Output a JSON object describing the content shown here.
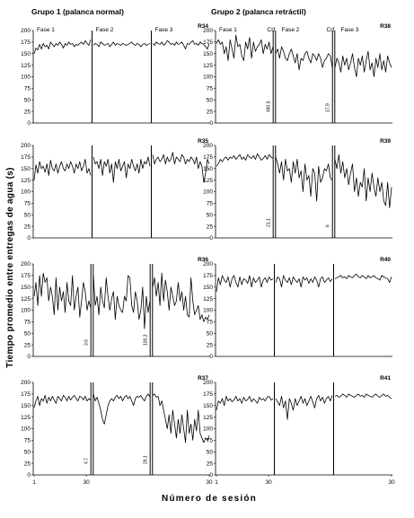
{
  "figure": {
    "group1_title": "Grupo 1 (palanca normal)",
    "group2_title": "Grupo 2 (palanca retráctil)",
    "ylabel": "Tiempo promedio entre entregas de agua (s)",
    "xlabel": "Número de sesión"
  },
  "chart_data": [
    {
      "id": "R34",
      "type": "line",
      "rat_label": "R34",
      "group": 1,
      "col": 0,
      "row": 0,
      "phase_labels": [
        "Fase 1",
        "Fase 2",
        "Fase 3"
      ],
      "boundaries": [
        [
          32
        ],
        [
          33
        ]
      ],
      "annotations": [],
      "ylim": [
        0,
        200
      ],
      "yticks": [
        0,
        25,
        50,
        75,
        100,
        125,
        150,
        175,
        200
      ],
      "phases": [
        [
          150,
          162,
          158,
          170,
          160,
          172,
          165,
          168,
          160,
          175,
          170,
          165,
          172,
          168,
          175,
          170,
          162,
          172,
          168,
          175,
          170,
          172,
          165,
          170,
          168,
          172,
          175,
          170,
          178,
          172,
          168,
          180
        ],
        [
          168,
          172,
          170,
          165,
          175,
          172,
          168,
          170,
          172,
          165,
          170,
          175,
          168,
          172,
          170,
          168,
          172,
          170,
          168,
          170,
          172,
          175,
          170,
          168,
          172,
          170,
          165,
          170,
          172,
          168,
          170,
          172
        ],
        [
          172,
          168,
          175,
          172,
          170,
          175,
          168,
          172,
          178,
          175,
          170,
          172,
          168,
          175,
          170,
          172,
          175,
          168,
          160,
          172,
          170,
          175,
          178,
          170,
          172,
          168,
          175,
          172,
          170,
          165,
          160,
          172
        ]
      ]
    },
    {
      "id": "R35",
      "type": "line",
      "rat_label": "R35",
      "group": 1,
      "col": 0,
      "row": 1,
      "phase_labels": [],
      "boundaries": [
        [
          32
        ],
        [
          33
        ]
      ],
      "annotations": [],
      "ylim": [
        0,
        200
      ],
      "yticks": [
        0,
        25,
        50,
        75,
        100,
        125,
        150,
        175,
        200
      ],
      "phases": [
        [
          125,
          158,
          140,
          165,
          150,
          155,
          142,
          160,
          135,
          168,
          150,
          145,
          160,
          140,
          155,
          165,
          150,
          145,
          160,
          150,
          165,
          155,
          140,
          160,
          150,
          165,
          145,
          155,
          170,
          140,
          150,
          135
        ],
        [
          175,
          160,
          165,
          150,
          170,
          135,
          165,
          155,
          170,
          140,
          160,
          120,
          165,
          150,
          170,
          145,
          155,
          165,
          130,
          160,
          150,
          170,
          155,
          145,
          160,
          140,
          170,
          150,
          165,
          160,
          175,
          155
        ],
        [
          180,
          160,
          170,
          175,
          165,
          170,
          180,
          160,
          175,
          165,
          170,
          185,
          160,
          175,
          170,
          165,
          180,
          175,
          160,
          170,
          165,
          175,
          170,
          160,
          175,
          150,
          165,
          155,
          120,
          140,
          170,
          160
        ]
      ]
    },
    {
      "id": "R36",
      "type": "line",
      "rat_label": "R36",
      "group": 1,
      "col": 0,
      "row": 2,
      "phase_labels": [],
      "boundaries": [
        [
          31,
          32
        ],
        [
          32,
          33
        ]
      ],
      "annotations": [
        {
          "text": "3,6",
          "phase": 0
        },
        {
          "text": "100,3",
          "phase": 1
        }
      ],
      "ylim": [
        0,
        200
      ],
      "yticks": [
        0,
        25,
        50,
        75,
        100,
        125,
        150,
        175,
        200
      ],
      "phases": [
        [
          130,
          160,
          110,
          175,
          130,
          180,
          160,
          170,
          120,
          150,
          130,
          90,
          170,
          100,
          150,
          120,
          140,
          95,
          160,
          120,
          110,
          175,
          100,
          130,
          150,
          85,
          120,
          160,
          140,
          100,
          120,
          105
        ],
        [
          175,
          110,
          130,
          90,
          150,
          120,
          105,
          170,
          130,
          100,
          125,
          140,
          80,
          130,
          110,
          100,
          95,
          130,
          120,
          175,
          170,
          110,
          95,
          140,
          120,
          80,
          100,
          150,
          60,
          130,
          95,
          120
        ],
        [
          150,
          170,
          130,
          160,
          110,
          180,
          120,
          165,
          140,
          100,
          150,
          130,
          110,
          120,
          160,
          120,
          140,
          100,
          130,
          90,
          85,
          170,
          120,
          90,
          100,
          110,
          80,
          90,
          75,
          85,
          80,
          90
        ]
      ]
    },
    {
      "id": "R37",
      "type": "line",
      "rat_label": "R37",
      "group": 1,
      "col": 0,
      "row": 3,
      "phase_labels": [],
      "boundaries": [
        [
          31,
          32
        ],
        [
          32,
          33
        ]
      ],
      "annotations": [
        {
          "text": "4,7",
          "phase": 0
        },
        {
          "text": "29,1",
          "phase": 1
        }
      ],
      "ylim": [
        0,
        200
      ],
      "yticks": [
        0,
        25,
        50,
        75,
        100,
        125,
        150,
        175,
        200
      ],
      "phases": [
        [
          145,
          160,
          170,
          150,
          165,
          160,
          172,
          155,
          168,
          160,
          170,
          162,
          155,
          170,
          165,
          160,
          172,
          168,
          160,
          170,
          162,
          168,
          172,
          165,
          160,
          170,
          168,
          162,
          170,
          160,
          165,
          162
        ],
        [
          175,
          160,
          168,
          155,
          140,
          120,
          110,
          130,
          150,
          160,
          165,
          160,
          168,
          172,
          165,
          170,
          160,
          168,
          172,
          165,
          170,
          160,
          150,
          165,
          170,
          168,
          172,
          165,
          160,
          170,
          175,
          168
        ],
        [
          172,
          175,
          168,
          170,
          150,
          160,
          140,
          120,
          100,
          130,
          90,
          140,
          110,
          80,
          120,
          90,
          130,
          100,
          70,
          140,
          90,
          110,
          75,
          120,
          95,
          140,
          90,
          80,
          70,
          80,
          75,
          85
        ]
      ]
    },
    {
      "id": "R38",
      "type": "line",
      "rat_label": "R38",
      "group": 2,
      "col": 1,
      "row": 0,
      "phase_labels": [
        "Fase 1",
        "Crf",
        "Fase 2",
        "Crf",
        "Fase 3"
      ],
      "boundaries": [
        [
          29,
          30
        ],
        [
          30,
          31
        ]
      ],
      "annotations": [
        {
          "text": "490,5",
          "phase": 0
        },
        {
          "text": "17,9",
          "phase": 1
        }
      ],
      "ylim": [
        0,
        200
      ],
      "yticks": [
        0,
        25,
        50,
        75,
        100,
        125,
        150,
        175,
        200
      ],
      "phases": [
        [
          172,
          180,
          170,
          175,
          150,
          165,
          135,
          180,
          160,
          140,
          190,
          165,
          170,
          145,
          135,
          175,
          160,
          185,
          140,
          175,
          155,
          165,
          170,
          180,
          150,
          170,
          160,
          175,
          150,
          165
        ],
        [
          150,
          160,
          140,
          165,
          155,
          140,
          135,
          150,
          160,
          145,
          130,
          150,
          115,
          140,
          135,
          150,
          155,
          140,
          130,
          150,
          145,
          135,
          150,
          140,
          120,
          135,
          140,
          150,
          145,
          120
        ],
        [
          120,
          140,
          130,
          110,
          145,
          125,
          140,
          115,
          130,
          150,
          120,
          100,
          140,
          125,
          145,
          110,
          135,
          155,
          115,
          130,
          100,
          140,
          120,
          150,
          115,
          135,
          110,
          145,
          130,
          120
        ]
      ]
    },
    {
      "id": "R39",
      "type": "line",
      "rat_label": "R39",
      "group": 2,
      "col": 1,
      "row": 1,
      "phase_labels": [],
      "boundaries": [
        [
          29,
          30
        ],
        [
          30,
          31
        ]
      ],
      "annotations": [
        {
          "text": "21,1",
          "phase": 0
        },
        {
          "text": "6",
          "phase": 1
        }
      ],
      "ylim": [
        0,
        200
      ],
      "yticks": [
        0,
        25,
        50,
        75,
        100,
        125,
        150,
        175,
        200
      ],
      "phases": [
        [
          155,
          160,
          170,
          165,
          172,
          175,
          168,
          175,
          172,
          178,
          170,
          175,
          180,
          170,
          175,
          168,
          180,
          175,
          172,
          178,
          170,
          182,
          175,
          168,
          172,
          178,
          170,
          180,
          175,
          172
        ],
        [
          175,
          160,
          140,
          165,
          125,
          170,
          145,
          150,
          120,
          165,
          140,
          170,
          130,
          145,
          100,
          160,
          125,
          135,
          90,
          150,
          140,
          80,
          155,
          120,
          130,
          150,
          145,
          160,
          130,
          125
        ],
        [
          170,
          150,
          180,
          140,
          165,
          130,
          150,
          115,
          140,
          160,
          100,
          130,
          90,
          120,
          110,
          150,
          80,
          130,
          100,
          140,
          110,
          90,
          130,
          100,
          120,
          80,
          70,
          120,
          65,
          110
        ]
      ]
    },
    {
      "id": "R40",
      "type": "line",
      "rat_label": "R40",
      "group": 2,
      "col": 1,
      "row": 2,
      "phase_labels": [],
      "boundaries": [
        [
          30
        ],
        [
          31
        ]
      ],
      "annotations": [],
      "ylim": [
        0,
        200
      ],
      "yticks": [
        0,
        25,
        50,
        75,
        100,
        125,
        150,
        175,
        200
      ],
      "phases": [
        [
          140,
          170,
          155,
          175,
          165,
          160,
          172,
          150,
          168,
          175,
          160,
          150,
          172,
          155,
          168,
          165,
          158,
          175,
          150,
          170,
          160,
          165,
          172,
          150,
          165,
          170,
          160,
          172,
          165,
          168
        ],
        [
          160,
          172,
          168,
          150,
          175,
          165,
          160,
          170,
          155,
          172,
          165,
          160,
          168,
          150,
          172,
          165,
          170,
          158,
          168,
          160,
          172,
          165,
          150,
          168,
          172,
          160,
          165,
          170,
          162,
          168
        ],
        [
          168,
          170,
          172,
          175,
          170,
          172,
          168,
          175,
          172,
          170,
          175,
          178,
          172,
          170,
          175,
          172,
          168,
          175,
          170,
          172,
          175,
          170,
          168,
          165,
          175,
          172,
          170,
          168,
          160,
          172
        ]
      ]
    },
    {
      "id": "R41",
      "type": "line",
      "rat_label": "R41",
      "group": 2,
      "col": 1,
      "row": 3,
      "phase_labels": [],
      "boundaries": [
        [
          30
        ],
        [
          31
        ]
      ],
      "annotations": [],
      "ylim": [
        0,
        200
      ],
      "yticks": [
        0,
        25,
        50,
        75,
        100,
        125,
        150,
        175,
        200
      ],
      "phases": [
        [
          140,
          160,
          155,
          165,
          150,
          170,
          160,
          165,
          158,
          162,
          170,
          160,
          165,
          155,
          168,
          160,
          163,
          170,
          158,
          165,
          160,
          155,
          168,
          162,
          165,
          160,
          168,
          170,
          162,
          165
        ],
        [
          165,
          158,
          150,
          170,
          145,
          160,
          120,
          165,
          155,
          140,
          165,
          150,
          160,
          170,
          155,
          165,
          150,
          160,
          170,
          158,
          145,
          165,
          172,
          160,
          168,
          155,
          165,
          170,
          160,
          172
        ],
        [
          170,
          172,
          168,
          170,
          175,
          172,
          168,
          175,
          172,
          170,
          168,
          172,
          175,
          170,
          172,
          168,
          175,
          172,
          170,
          168,
          172,
          175,
          170,
          168,
          172,
          175,
          170,
          172,
          168,
          165
        ]
      ]
    }
  ],
  "x_axis": {
    "group1_ticks": [
      "1",
      "30",
      "30"
    ],
    "group2_ticks": [
      "1",
      "30",
      "30"
    ]
  }
}
